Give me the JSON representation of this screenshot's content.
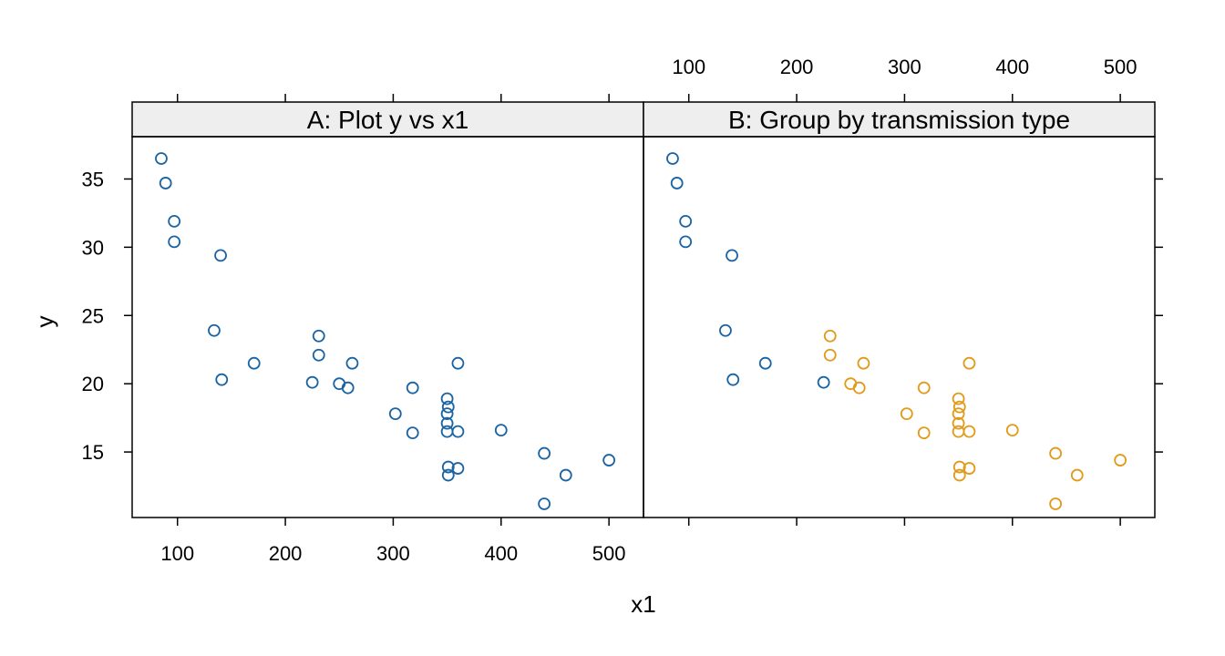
{
  "chart_data": {
    "type": "scatter",
    "xlabel": "x1",
    "ylabel": "y",
    "xlim": [
      58,
      532
    ],
    "ylim": [
      10.2,
      38.1
    ],
    "xticks": [
      100,
      200,
      300,
      400,
      500
    ],
    "yticks": [
      15,
      20,
      25,
      30,
      35
    ],
    "grid": false,
    "colors": {
      "auto": "#1a64a4",
      "manual": "#e19a1a"
    },
    "points": [
      {
        "x": 85,
        "y": 36.5,
        "group": "auto"
      },
      {
        "x": 89,
        "y": 34.7,
        "group": "auto"
      },
      {
        "x": 97,
        "y": 31.9,
        "group": "auto"
      },
      {
        "x": 97,
        "y": 30.4,
        "group": "auto"
      },
      {
        "x": 140,
        "y": 29.4,
        "group": "auto"
      },
      {
        "x": 134,
        "y": 23.9,
        "group": "auto"
      },
      {
        "x": 141,
        "y": 20.3,
        "group": "auto"
      },
      {
        "x": 171,
        "y": 21.5,
        "group": "auto"
      },
      {
        "x": 225,
        "y": 20.1,
        "group": "auto"
      },
      {
        "x": 231,
        "y": 23.5,
        "group": "manual"
      },
      {
        "x": 231,
        "y": 22.1,
        "group": "manual"
      },
      {
        "x": 250,
        "y": 20.0,
        "group": "manual"
      },
      {
        "x": 258,
        "y": 19.7,
        "group": "manual"
      },
      {
        "x": 262,
        "y": 21.5,
        "group": "manual"
      },
      {
        "x": 302,
        "y": 17.8,
        "group": "manual"
      },
      {
        "x": 318,
        "y": 19.7,
        "group": "manual"
      },
      {
        "x": 318,
        "y": 16.4,
        "group": "manual"
      },
      {
        "x": 350,
        "y": 18.9,
        "group": "manual"
      },
      {
        "x": 351,
        "y": 18.3,
        "group": "manual"
      },
      {
        "x": 350,
        "y": 17.8,
        "group": "manual"
      },
      {
        "x": 350,
        "y": 17.1,
        "group": "manual"
      },
      {
        "x": 350,
        "y": 16.5,
        "group": "manual"
      },
      {
        "x": 351,
        "y": 13.9,
        "group": "manual"
      },
      {
        "x": 351,
        "y": 13.3,
        "group": "manual"
      },
      {
        "x": 360,
        "y": 21.5,
        "group": "manual"
      },
      {
        "x": 360,
        "y": 16.5,
        "group": "manual"
      },
      {
        "x": 360,
        "y": 13.8,
        "group": "manual"
      },
      {
        "x": 400,
        "y": 16.6,
        "group": "manual"
      },
      {
        "x": 440,
        "y": 14.9,
        "group": "manual"
      },
      {
        "x": 440,
        "y": 11.2,
        "group": "manual"
      },
      {
        "x": 460,
        "y": 13.3,
        "group": "manual"
      },
      {
        "x": 500,
        "y": 14.4,
        "group": "manual"
      }
    ],
    "panels": [
      {
        "id": "A",
        "title": "A: Plot y vs x1",
        "color_by_group": false
      },
      {
        "id": "B",
        "title": "B: Group by transmission type",
        "color_by_group": true
      }
    ]
  }
}
